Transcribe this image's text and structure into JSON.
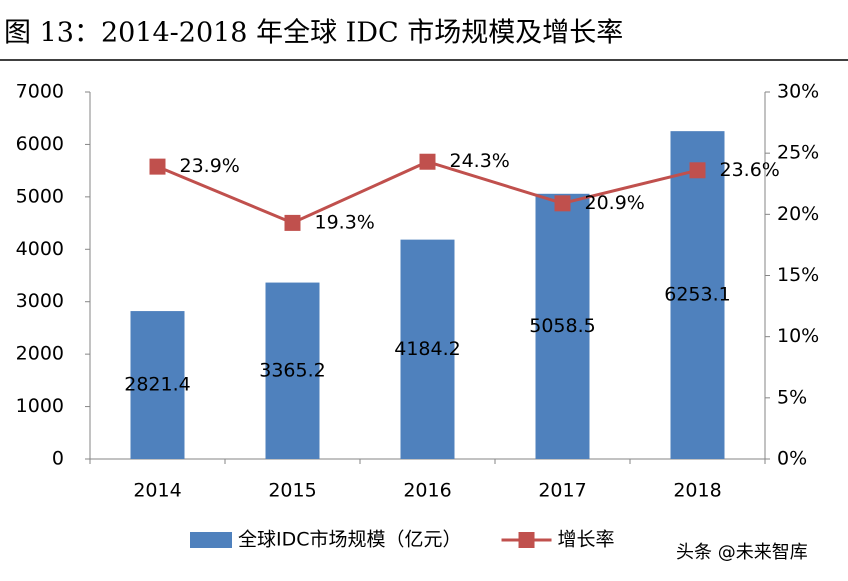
{
  "chart_data": {
    "type": "bar",
    "title": "图 13：2014-2018 年全球 IDC 市场规模及增长率",
    "categories": [
      "2014",
      "2015",
      "2016",
      "2017",
      "2018"
    ],
    "series": [
      {
        "name": "全球IDC市场规模（亿元）",
        "type": "bar",
        "color": "#4f81bd",
        "values": [
          2821.4,
          3365.2,
          4184.2,
          5058.5,
          6253.1
        ]
      },
      {
        "name": "增长率",
        "type": "line",
        "axis": "y2",
        "color": "#c0504d",
        "values": [
          23.9,
          19.3,
          24.3,
          20.9,
          23.6
        ],
        "value_labels": [
          "23.9%",
          "19.3%",
          "24.3%",
          "20.9%",
          "23.6%"
        ]
      }
    ],
    "ylim": [
      0,
      7000
    ],
    "yticks": [
      0,
      1000,
      2000,
      3000,
      4000,
      5000,
      6000,
      7000
    ],
    "y2lim": [
      0,
      30
    ],
    "y2ticks": [
      {
        "value": 0,
        "label": "0%"
      },
      {
        "value": 5,
        "label": "5%"
      },
      {
        "value": 10,
        "label": "10%"
      },
      {
        "value": 15,
        "label": "15%"
      },
      {
        "value": 20,
        "label": "20%"
      },
      {
        "value": 25,
        "label": "25%"
      },
      {
        "value": 30,
        "label": "30%"
      }
    ],
    "grid": false,
    "legend": "bottom",
    "watermark": "头条 @未来智库"
  }
}
